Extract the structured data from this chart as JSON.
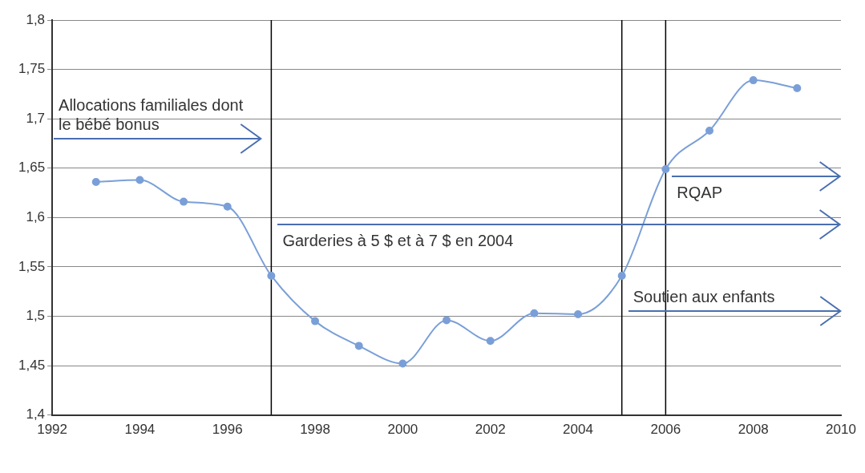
{
  "chart_data": {
    "type": "line",
    "x": [
      1993,
      1994,
      1995,
      1996,
      1997,
      1998,
      1999,
      2000,
      2001,
      2002,
      2003,
      2004,
      2005,
      2006,
      2007,
      2008,
      2009
    ],
    "series": [
      {
        "color": "#7a9fd8",
        "values": [
          1.636,
          1.638,
          1.616,
          1.611,
          1.541,
          1.495,
          1.47,
          1.452,
          1.496,
          1.475,
          1.503,
          1.502,
          1.541,
          1.649,
          1.688,
          1.739,
          1.731
        ]
      }
    ],
    "xlim": [
      1992,
      2010
    ],
    "xticks": [
      1992,
      1994,
      1996,
      1998,
      2000,
      2002,
      2004,
      2006,
      2008,
      2010
    ],
    "ylim": [
      1.4,
      1.8
    ],
    "yticks": [
      {
        "value": 1.4,
        "label": "1,4"
      },
      {
        "value": 1.45,
        "label": "1,45"
      },
      {
        "value": 1.5,
        "label": "1,5"
      },
      {
        "value": 1.55,
        "label": "1,55"
      },
      {
        "value": 1.6,
        "label": "1,6"
      },
      {
        "value": 1.65,
        "label": "1,65"
      },
      {
        "value": 1.7,
        "label": "1,7"
      },
      {
        "value": 1.75,
        "label": "1,75"
      },
      {
        "value": 1.8,
        "label": "1,8"
      }
    ],
    "grid": "y",
    "marker": "circle",
    "line_style": "solid",
    "legend": false,
    "ref_lines": [
      {
        "axis": "x",
        "value": 1997,
        "color": "#000000",
        "label": "Garderies à 5 $ et à 7 $ en 2004"
      },
      {
        "axis": "x",
        "value": 2005,
        "color": "#000000",
        "label": "Soutien aux enfants"
      },
      {
        "axis": "x",
        "value": 2006,
        "color": "#000000",
        "label": "RQAP"
      }
    ],
    "annotations": [
      "Allocations familiales dont le bébé bonus"
    ]
  }
}
